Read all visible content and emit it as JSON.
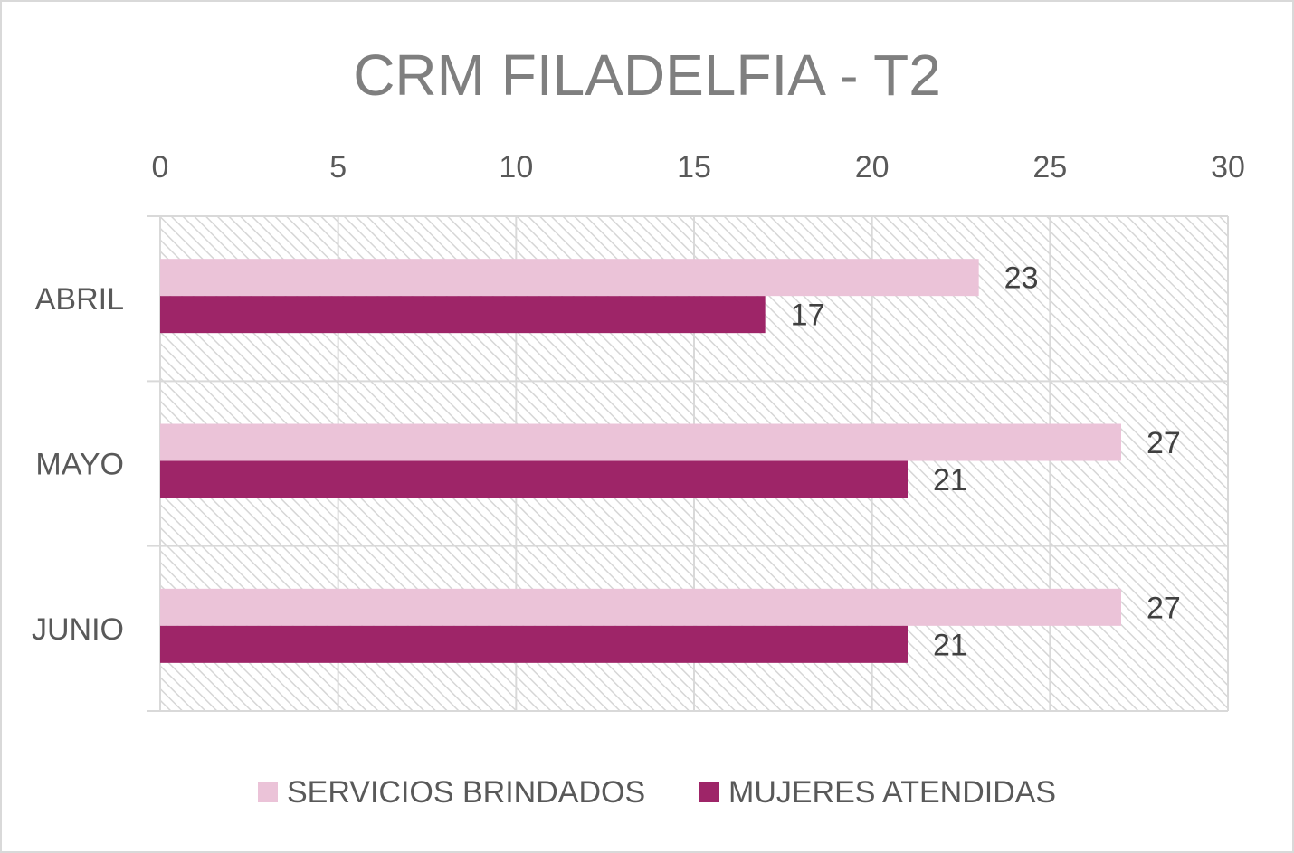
{
  "chart_data": {
    "type": "bar",
    "orientation": "horizontal",
    "title": "CRM FILADELFIA - T2",
    "categories": [
      "ABRIL",
      "MAYO",
      "JUNIO"
    ],
    "series": [
      {
        "name": "SERVICIOS BRINDADOS",
        "color": "#ebc3d8",
        "values": [
          23,
          27,
          27
        ]
      },
      {
        "name": "MUJERES ATENDIDAS",
        "color": "#9e2568",
        "values": [
          17,
          21,
          21
        ]
      }
    ],
    "xlim": [
      0,
      30
    ],
    "x_ticks": [
      "0",
      "5",
      "10",
      "15",
      "20",
      "25",
      "30"
    ],
    "x_axis_position": "top",
    "grid": true,
    "plot_background": "diagonal-hatch",
    "data_labels": true,
    "legend_position": "bottom"
  }
}
